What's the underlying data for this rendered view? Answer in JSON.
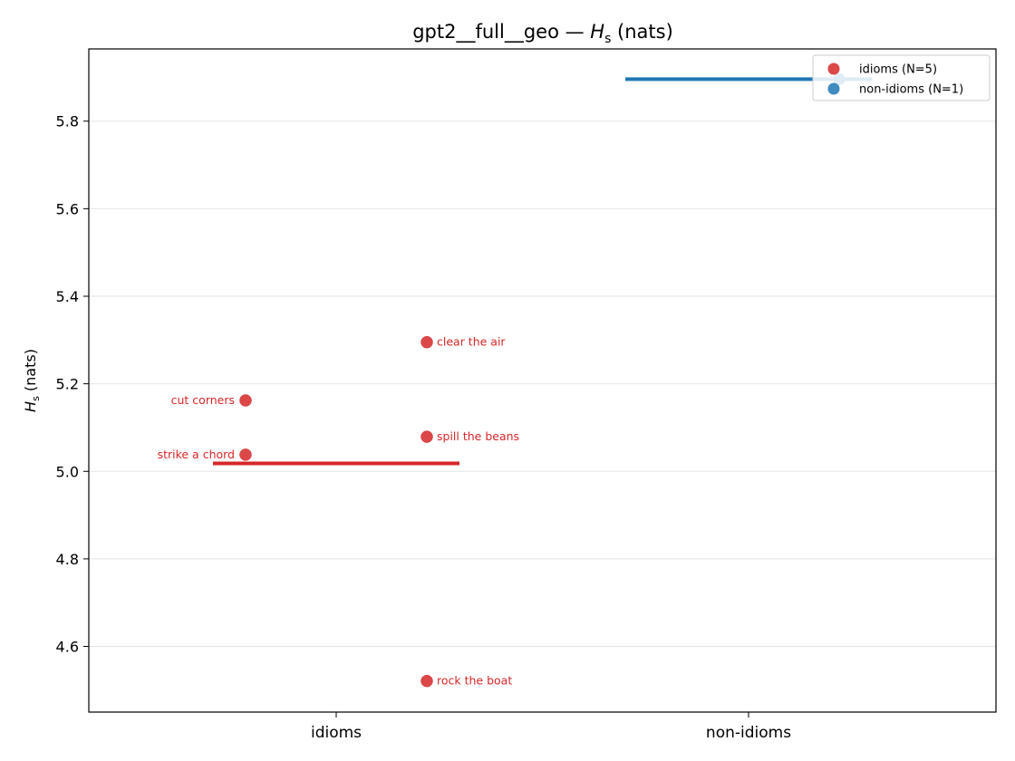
{
  "chart_data": {
    "type": "scatter",
    "title_main": "gpt2__full__geo — ",
    "title_sym": "H",
    "title_sub": "s",
    "title_unit": " (nats)",
    "ylabel_sym": "H",
    "ylabel_sub": "s",
    "ylabel_unit": " (nats)",
    "ylim": [
      4.45,
      5.965
    ],
    "yticks": [
      "4.6",
      "4.8",
      "5.0",
      "5.2",
      "5.4",
      "5.6",
      "5.8"
    ],
    "categories": [
      "idioms",
      "non-idioms"
    ],
    "grid": "horizontal",
    "legend_position": "top-right",
    "series": [
      {
        "name": "idioms (N=5)",
        "category": "idioms",
        "color": "#d62728",
        "mean": 5.018,
        "points": [
          {
            "label": "clear the air",
            "value": 5.295,
            "side": "right",
            "offset": "right"
          },
          {
            "label": "cut corners",
            "value": 5.162,
            "side": "left",
            "offset": "left"
          },
          {
            "label": "spill the beans",
            "value": 5.079,
            "side": "right",
            "offset": "right"
          },
          {
            "label": "strike a chord",
            "value": 5.038,
            "side": "left",
            "offset": "left"
          },
          {
            "label": "rock the boat",
            "value": 4.521,
            "side": "right",
            "offset": "right"
          }
        ]
      },
      {
        "name": "non-idioms (N=1)",
        "category": "non-idioms",
        "color": "#1f77b4",
        "mean": 5.896,
        "points": [
          {
            "label": "",
            "value": 5.896,
            "side": "right",
            "offset": "right"
          }
        ]
      }
    ]
  }
}
